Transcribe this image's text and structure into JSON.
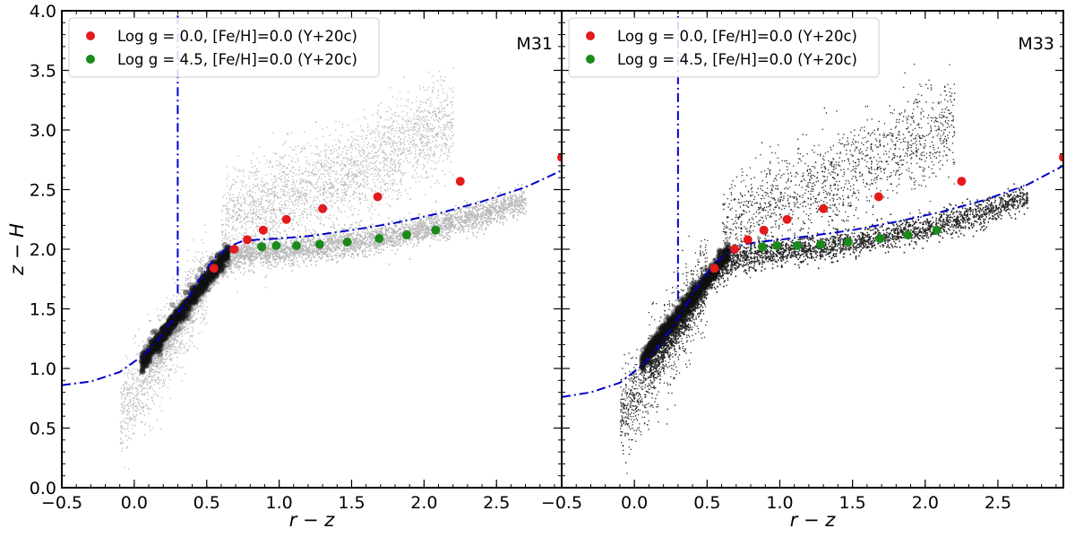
{
  "chart_data": [
    {
      "type": "scatter",
      "panel_label": "M31",
      "xlabel": "r − z",
      "ylabel": "z − H",
      "xlim": [
        -0.5,
        2.95
      ],
      "ylim": [
        0.0,
        4.0
      ],
      "x_ticks": [
        -0.5,
        0.0,
        0.5,
        1.0,
        1.5,
        2.0,
        2.5
      ],
      "x_tick_labels": [
        "−0.5",
        "0.0",
        "0.5",
        "1.0",
        "1.5",
        "2.0",
        "2.5"
      ],
      "y_ticks": [
        0.0,
        0.5,
        1.0,
        1.5,
        2.0,
        2.5,
        3.0,
        3.5,
        4.0
      ],
      "y_tick_labels": [
        "0.0",
        "0.5",
        "1.0",
        "1.5",
        "2.0",
        "2.5",
        "3.0",
        "3.5",
        "4.0"
      ],
      "grid": false,
      "legend_position": "top-left",
      "stars_color": "#7f7f7f",
      "series": [
        {
          "name": "Log g = 0.0, [Fe/H]=0.0 (Y+20c)",
          "color": "#e41a1c",
          "x": [
            0.55,
            0.69,
            0.78,
            0.89,
            1.05,
            1.3,
            1.68,
            2.25,
            2.95
          ],
          "y": [
            1.84,
            2.0,
            2.08,
            2.16,
            2.25,
            2.34,
            2.44,
            2.57,
            2.77
          ]
        },
        {
          "name": "Log g = 4.5, [Fe/H]=0.0 (Y+20c)",
          "color": "#1a8a1a",
          "x": [
            0.88,
            0.98,
            1.12,
            1.28,
            1.47,
            1.69,
            1.88,
            2.08
          ],
          "y": [
            2.02,
            2.03,
            2.03,
            2.04,
            2.06,
            2.09,
            2.12,
            2.16
          ]
        }
      ],
      "boundary_line": {
        "style": "dash-dot",
        "color": "#0000cc",
        "x": [
          -0.5,
          -0.3,
          -0.1,
          0.05,
          0.15,
          0.25,
          0.35,
          0.45,
          0.55,
          0.65,
          0.75,
          0.85,
          1.0,
          1.2,
          1.5,
          1.8,
          2.1,
          2.4,
          2.7,
          2.95
        ],
        "y": [
          0.86,
          0.89,
          0.97,
          1.1,
          1.22,
          1.38,
          1.55,
          1.75,
          1.92,
          2.02,
          2.07,
          2.08,
          2.09,
          2.11,
          2.16,
          2.22,
          2.3,
          2.4,
          2.52,
          2.66
        ]
      },
      "vertical_line": {
        "style": "dash-dot",
        "color": "#0000cc",
        "x": 0.3,
        "y_from": 1.63,
        "y_to": 4.0
      }
    },
    {
      "type": "scatter",
      "panel_label": "M33",
      "xlabel": "r − z",
      "ylabel": "",
      "xlim": [
        -0.5,
        2.95
      ],
      "ylim": [
        0.0,
        4.0
      ],
      "x_ticks": [
        -0.5,
        0.0,
        0.5,
        1.0,
        1.5,
        2.0,
        2.5
      ],
      "x_tick_labels": [
        "−0.5",
        "0.0",
        "0.5",
        "1.0",
        "1.5",
        "2.0",
        "2.5"
      ],
      "y_ticks": [
        0.0,
        0.5,
        1.0,
        1.5,
        2.0,
        2.5,
        3.0,
        3.5,
        4.0
      ],
      "y_tick_labels": [],
      "grid": false,
      "legend_position": "top-left",
      "stars_color": "#000000",
      "series": [
        {
          "name": "Log g = 0.0, [Fe/H]=0.0 (Y+20c)",
          "color": "#e41a1c",
          "x": [
            0.55,
            0.69,
            0.78,
            0.89,
            1.05,
            1.3,
            1.68,
            2.25,
            2.95
          ],
          "y": [
            1.84,
            2.0,
            2.08,
            2.16,
            2.25,
            2.34,
            2.44,
            2.57,
            2.77
          ]
        },
        {
          "name": "Log g = 4.5, [Fe/H]=0.0 (Y+20c)",
          "color": "#1a8a1a",
          "x": [
            0.88,
            0.98,
            1.12,
            1.28,
            1.47,
            1.69,
            1.88,
            2.08
          ],
          "y": [
            2.02,
            2.03,
            2.03,
            2.04,
            2.06,
            2.09,
            2.12,
            2.16
          ]
        }
      ],
      "boundary_line": {
        "style": "dash-dot",
        "color": "#0000cc",
        "x": [
          -0.5,
          -0.3,
          -0.1,
          0.05,
          0.15,
          0.25,
          0.35,
          0.45,
          0.55,
          0.65,
          0.75,
          0.85,
          1.0,
          1.2,
          1.5,
          1.8,
          2.1,
          2.4,
          2.7,
          2.95
        ],
        "y": [
          0.76,
          0.8,
          0.88,
          1.02,
          1.16,
          1.33,
          1.52,
          1.72,
          1.88,
          1.98,
          2.04,
          2.06,
          2.08,
          2.11,
          2.16,
          2.23,
          2.31,
          2.41,
          2.54,
          2.7
        ]
      },
      "vertical_line": {
        "style": "dash-dot",
        "color": "#0000cc",
        "x": 0.3,
        "y_from": 1.58,
        "y_to": 4.0
      }
    }
  ]
}
